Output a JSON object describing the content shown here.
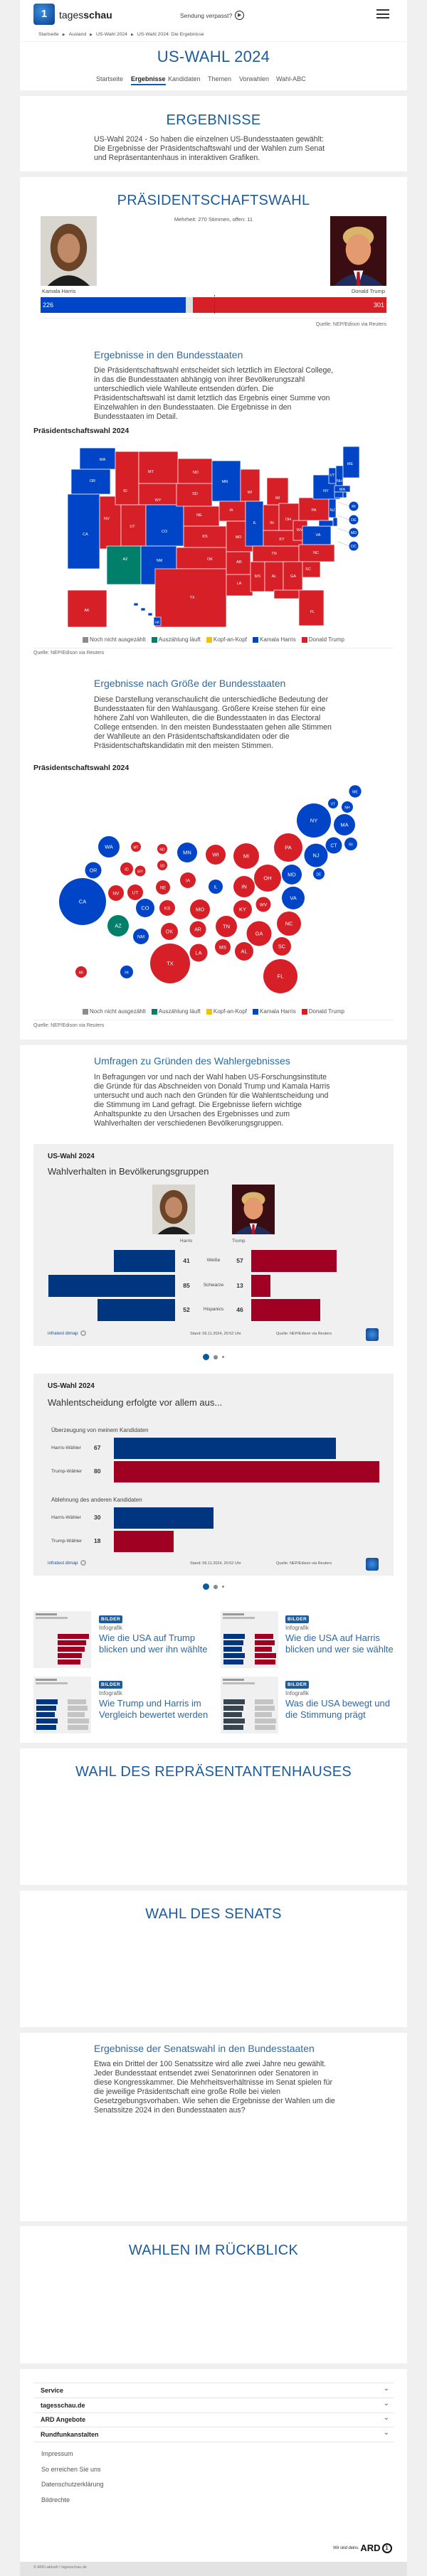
{
  "header": {
    "logo_text_light": "tages",
    "logo_text_bold": "schau",
    "missed_show": "Sendung verpasst?",
    "breadcrumb": [
      "Startseite",
      "Ausland",
      "US-Wahl 2024",
      "US-Wahl 2024: Die Ergebnisse"
    ]
  },
  "title_card": {
    "title": "US-WAHL 2024",
    "nav": [
      {
        "label": "Startseite",
        "active": false
      },
      {
        "label": "Ergebnisse",
        "active": true
      },
      {
        "label": "Kandidaten",
        "active": false
      },
      {
        "label": "Themen",
        "active": false
      },
      {
        "label": "Vorwahlen",
        "active": false
      },
      {
        "label": "Wahl-ABC",
        "active": false
      }
    ]
  },
  "ergebnisse": {
    "title": "ERGEBNISSE",
    "text": "US-Wahl 2024 - So haben die einzelnen US-Bundesstaaten gewählt: Die Ergebnisse der Präsidentschaftswahl und der Wahlen zum Senat und Repräsentantenhaus in interaktiven Grafiken."
  },
  "president": {
    "title": "PRÄSIDENTSCHAFTSWAHL",
    "majority_text": "Mehrheit: 270 Stimmen, offen: 11",
    "majority": 270,
    "total": 538,
    "open": 11,
    "harris": {
      "name": "Kamala Harris",
      "votes": "226",
      "color": "#0044c8"
    },
    "trump": {
      "name": "Donald Trump",
      "votes": "301",
      "color": "#d71f28"
    },
    "source": "Quelle: NEP/Edison via Reuters"
  },
  "legend": [
    {
      "label": "Noch nicht ausgezählt",
      "color": "#8c8c8c"
    },
    {
      "label": "Auszählung läuft",
      "color": "#00806a"
    },
    {
      "label": "Kopf-an-Kopf",
      "color": "#f0c400"
    },
    {
      "label": "Kamala Harris",
      "color": "#0044c8"
    },
    {
      "label": "Donald Trump",
      "color": "#d71f28"
    }
  ],
  "state_results": {
    "blue": [
      "WA",
      "OR",
      "CA",
      "CO",
      "NM",
      "MN",
      "IL",
      "VA",
      "MD",
      "DE",
      "NJ",
      "NY",
      "CT",
      "RI",
      "MA",
      "VT",
      "NH",
      "ME",
      "HI",
      "DC"
    ],
    "counting": [
      "AZ"
    ],
    "red": [
      "ID",
      "NV",
      "MT",
      "WY",
      "UT",
      "ND",
      "SD",
      "NE",
      "KS",
      "OK",
      "TX",
      "IA",
      "MO",
      "AR",
      "LA",
      "WI",
      "MS",
      "AL",
      "TN",
      "KY",
      "IN",
      "MI",
      "OH",
      "WV",
      "NC",
      "SC",
      "GA",
      "FL",
      "PA",
      "AK"
    ]
  },
  "states_map": {
    "heading": "Ergebnisse in den Bundesstaaten",
    "text": "Die Präsidentschaftswahl entscheidet sich letztlich im Electoral College, in das die Bundesstaaten abhängig von ihrer Bevölkerungszahl unterschiedlich viele Wahlleute entsenden dürfen. Die Präsidentschaftswahl ist damit letztlich das Ergebnis einer Summe von Einzelwahlen in den Bundesstaaten. Die Ergebnisse in den Bundesstaaten im Detail.",
    "chart_label": "Präsidentschaftswahl 2024",
    "source": "Quelle: NEP/Edison via Reuters"
  },
  "bubble_map": {
    "heading": "Ergebnisse nach Größe der Bundesstaaten",
    "text": "Diese Darstellung veranschaulicht die unterschiedliche Bedeutung der Bundesstaaten für den Wahlausgang. Größere Kreise stehen für eine höhere Zahl von Wahlleuten, die die Bundesstaaten in das Electoral College entsenden. In den meisten Bundesstaaten gehen alle Stimmen der Wahlleute an den Präsidentschaftskandidaten oder die Präsidentschaftskandidatin mit den meisten Stimmen.",
    "chart_label": "Präsidentschaftswahl 2024",
    "source": "Quelle: NEP/Edison via Reuters"
  },
  "polls": {
    "heading": "Umfragen zu Gründen des Wahlergebnisses",
    "text": "In Befragungen vor und nach der Wahl haben US-Forschungsinstitute die Gründe für das Abschneiden von Donald Trump und Kamala Harris untersucht und auch nach den Gründen für die Wahlentscheidung und die Stimmung im Land gefragt. Die Ergebnisse liefern wichtige Anhaltspunkte zu den Ursachen des Ergebnisses und zum Wahlverhalten der verschiedenen Bevölkerungsgruppen.",
    "chart1": {
      "kicker": "US-Wahl 2024",
      "title": "Wahlverhalten in Bevölkerungsgruppen",
      "harris_label": "Harris",
      "trump_label": "Trump",
      "rows": [
        {
          "group": "Weiße",
          "harris": 41,
          "trump": 57
        },
        {
          "group": "Schwarze",
          "harris": 85,
          "trump": 13
        },
        {
          "group": "Hispanics",
          "harris": 52,
          "trump": 46
        }
      ],
      "brand": "infratest dimap",
      "stand": "Stand:  06.11.2024, 20:52 Uhr",
      "source": "Quelle: NEP/Edison via Reuters"
    },
    "chart2": {
      "kicker": "US-Wahl 2024",
      "title": "Wahlentscheidung erfolgte vor allem aus...",
      "groups": [
        {
          "label": "Überzeugung von meinem Kandidaten",
          "rows": [
            {
              "label": "Harris-Wähler",
              "value": 67
            },
            {
              "label": "Trump-Wähler",
              "value": 80
            }
          ]
        },
        {
          "label": "Ablehnung des anderen Kandidaten",
          "rows": [
            {
              "label": "Harris-Wähler",
              "value": 30
            },
            {
              "label": "Trump-Wähler",
              "value": 18
            }
          ]
        }
      ],
      "brand": "infratest dimap",
      "stand": "Stand:  06.11.2024, 20:52 Uhr",
      "source": "Quelle: NEP/Edison via Reuters"
    },
    "colors": {
      "harris": "#003580",
      "trump": "#a00022"
    },
    "carousel_pages": 3,
    "carousel_active": 1
  },
  "related": [
    {
      "badge": "BILDER",
      "kicker": "Infografik",
      "title": "Wie die USA auf Trump blicken und wer ihn wählte"
    },
    {
      "badge": "BILDER",
      "kicker": "Infografik",
      "title": "Wie die USA auf Harris blicken und wer sie wählte"
    },
    {
      "badge": "BILDER",
      "kicker": "Infografik",
      "title": "Wie Trump und Harris im Vergleich bewertet werden"
    },
    {
      "badge": "BILDER",
      "kicker": "Infografik",
      "title": "Was die USA bewegt und die Stimmung prägt"
    }
  ],
  "house": {
    "title": "WAHL DES REPRÄSENTANTENHAUSES"
  },
  "senate": {
    "title": "WAHL DES SENATS",
    "heading": "Ergebnisse der Senatswahl in den Bundesstaaten",
    "text": "Etwa ein Drittel der 100 Senatssitze wird alle zwei Jahre neu gewählt. Jeder Bundesstaat entsendet zwei Senatorinnen oder Senatoren in diese Kongresskammer. Die Mehrheitsverhältnisse im Senat spielen für die jeweilige Präsidentschaft eine große Rolle bei vielen Gesetzgebungsvorhaben. Wie sehen die Ergebnisse der Wahlen um die Senatssitze 2024 in den Bundesstaaten aus?"
  },
  "retro": {
    "title": "WAHLEN IM RÜCKBLICK"
  },
  "footer": {
    "accordion": [
      "Service",
      "tagesschau.de",
      "ARD Angebote",
      "Rundfunkanstalten"
    ],
    "links": [
      "Impressum",
      "So erreichen Sie uns",
      "Datenschutzerklärung",
      "Bildrechte"
    ],
    "slogan": "Wir sind deins.",
    "ard": "ARD",
    "copyright": "© ARD-aktuell / tagesschau.de"
  }
}
